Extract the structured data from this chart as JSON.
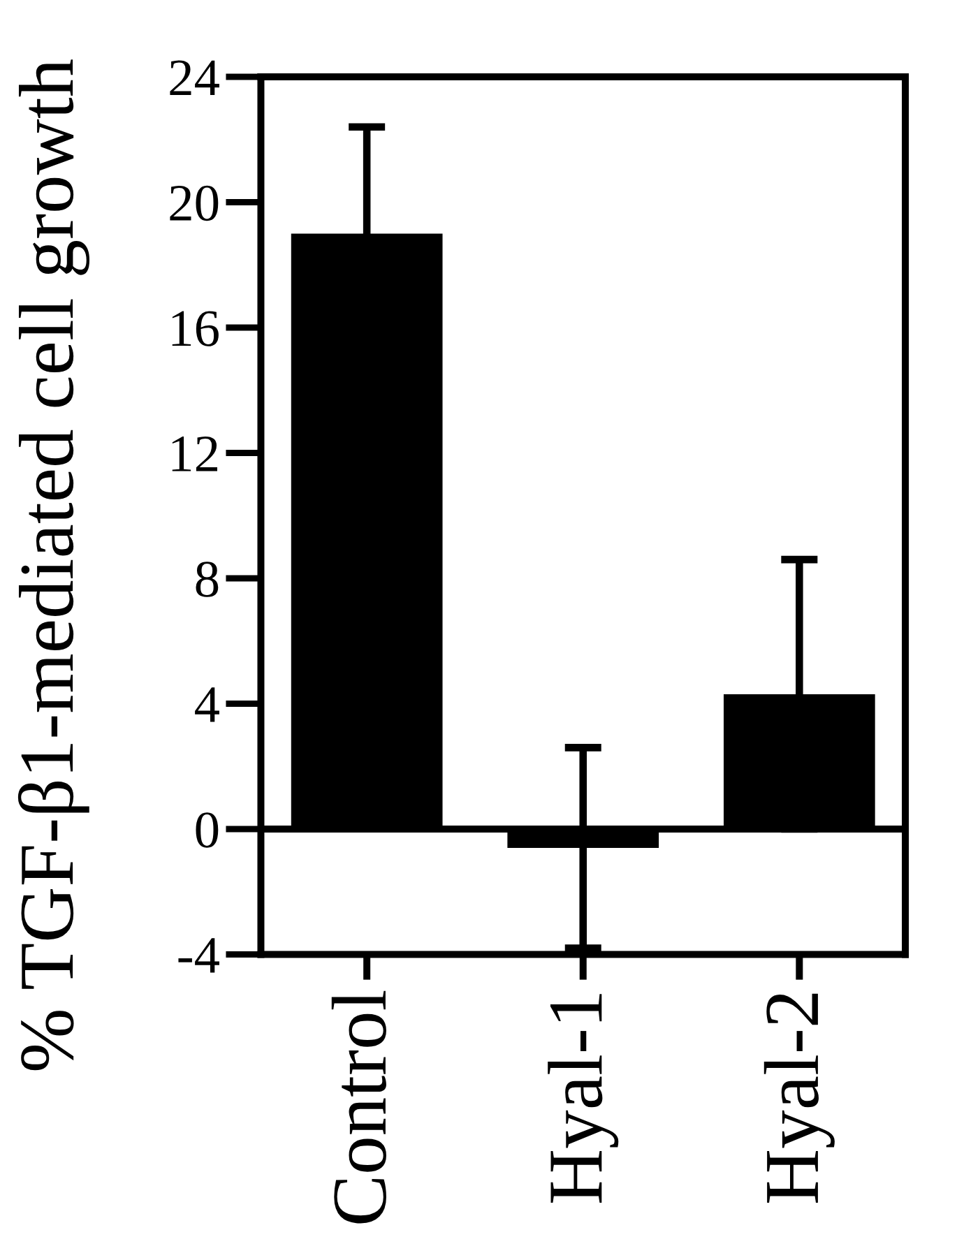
{
  "chart_data": {
    "type": "bar",
    "ylabel": "% TGF-β1-mediated cell growth",
    "categories": [
      "Control",
      "Hyal-1",
      "Hyal-2"
    ],
    "values": [
      19.0,
      -0.6,
      4.3
    ],
    "errors": [
      3.4,
      3.2,
      4.3
    ],
    "color": "#000000",
    "ylim": [
      -4,
      24
    ],
    "yticks": [
      -4,
      0,
      4,
      8,
      12,
      16,
      20,
      24
    ],
    "ref_lines": [
      {
        "axis": "y",
        "value": 0,
        "color": "#000000"
      }
    ]
  }
}
